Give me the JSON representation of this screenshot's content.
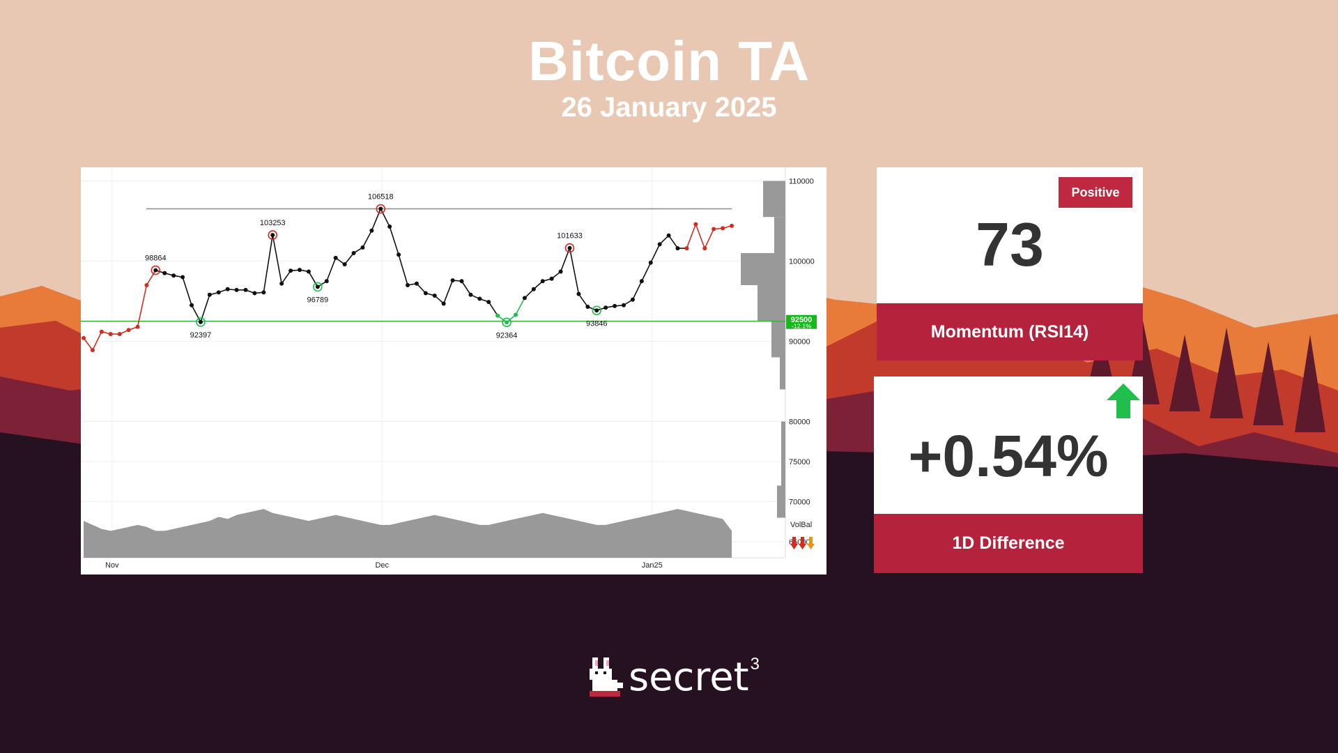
{
  "header": {
    "title": "Bitcoin TA",
    "date": "26 January 2025"
  },
  "colors": {
    "sky": "#e9c8b3",
    "mountain_far": "#e87a3a",
    "mountain_mid": "#c23a2c",
    "mountain_near": "#7d2236",
    "ground": "#261120",
    "accent": "#b5223c",
    "positive_green": "#1fbf4c"
  },
  "chart_data": {
    "type": "line",
    "x_ticks": [
      "Nov",
      "Dec",
      "Jan25"
    ],
    "y_ticks": [
      "110000",
      "100000",
      "90000",
      "80000",
      "75000",
      "70000",
      "65000"
    ],
    "series": [
      {
        "values": [
          90400,
          88900,
          91200,
          90900,
          90900,
          91400,
          91800,
          97000,
          98864,
          98500,
          98200,
          98000,
          94500,
          92397,
          95800,
          96100,
          96500,
          96400,
          96400,
          96000,
          96100,
          103253,
          97200,
          98800,
          98900,
          98700,
          96789,
          97500,
          100400,
          99600,
          101000,
          101700,
          103800,
          106518,
          104300,
          100800,
          97000,
          97200,
          96000,
          95700,
          94700,
          97600,
          97500,
          95800,
          95300,
          94900,
          93200,
          92364,
          93300,
          95400,
          96500,
          97500,
          97800,
          98700,
          101633,
          95900,
          94300,
          93846,
          94200,
          94400,
          94500,
          95200,
          97500,
          99800,
          102100,
          103200,
          101600,
          101600,
          104600,
          101600,
          104000,
          104100,
          104400
        ]
      }
    ],
    "annotations": [
      {
        "label": "98864",
        "value": 98864,
        "kind": "high"
      },
      {
        "label": "92397",
        "value": 92397,
        "kind": "low"
      },
      {
        "label": "103253",
        "value": 103253,
        "kind": "high"
      },
      {
        "label": "96789",
        "value": 96789,
        "kind": "low"
      },
      {
        "label": "106518",
        "value": 106518,
        "kind": "high"
      },
      {
        "label": "92364",
        "value": 92364,
        "kind": "low"
      },
      {
        "label": "101633",
        "value": 101633,
        "kind": "high"
      },
      {
        "label": "93846",
        "value": 93846,
        "kind": "low"
      }
    ],
    "resistance_level": 106518,
    "support_level": 92500,
    "current_marker": {
      "label": "92500",
      "change": "-12.1%"
    },
    "volume_label": "VolBal",
    "volume_profile": [
      {
        "from": 105500,
        "to": 110000
      },
      {
        "from": 101000,
        "to": 105500
      },
      {
        "from": 97000,
        "to": 101000
      },
      {
        "from": 92500,
        "to": 97000
      },
      {
        "from": 88000,
        "to": 92500
      },
      {
        "from": 84000,
        "to": 88000
      },
      {
        "from": 72000,
        "to": 80000
      },
      {
        "from": 68000,
        "to": 72000
      }
    ],
    "ylim": [
      63000,
      111000
    ]
  },
  "rsi": {
    "badge": "Positive",
    "value": "73",
    "label": "Momentum (RSI14)"
  },
  "diff": {
    "value": "+0.54%",
    "label": "1D Difference",
    "icon": "up-arrow-icon"
  },
  "logo": {
    "text": "secret",
    "sup": "3"
  }
}
